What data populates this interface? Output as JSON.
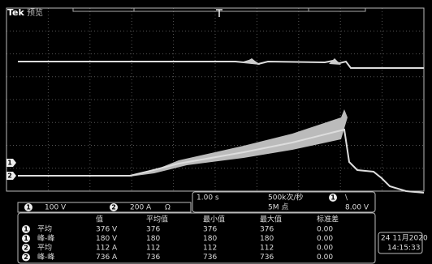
{
  "header": {
    "brand": "Tek",
    "mode": "预览"
  },
  "channels": [
    {
      "id": "1",
      "scale": "100 V"
    },
    {
      "id": "2",
      "scale": "200 A",
      "extra": "Ω"
    }
  ],
  "acquisition": {
    "timebase": "1.00 s",
    "sample_rate": "500k次/秒",
    "record_length": "5M 点",
    "trigger_slope": "\\",
    "trigger_level": "8.00 V"
  },
  "measurements": {
    "headers": [
      "值",
      "平均值",
      "最小值",
      "最大值",
      "标准差"
    ],
    "rows": [
      {
        "channel": 0,
        "name": "平均",
        "values": [
          "376 V",
          "376",
          "376",
          "376",
          "0.00"
        ]
      },
      {
        "channel": 0,
        "name": "峰-峰",
        "values": [
          "180 V",
          "180",
          "180",
          "180",
          "0.00"
        ]
      },
      {
        "channel": 1,
        "name": "平均",
        "values": [
          "112 A",
          "112",
          "112",
          "112",
          "0.00"
        ]
      },
      {
        "channel": 1,
        "name": "峰-峰",
        "values": [
          "736 A",
          "736",
          "736",
          "736",
          "0.00"
        ]
      }
    ]
  },
  "datetime": {
    "date": "24 11月2020",
    "time": "14:15:33"
  }
}
